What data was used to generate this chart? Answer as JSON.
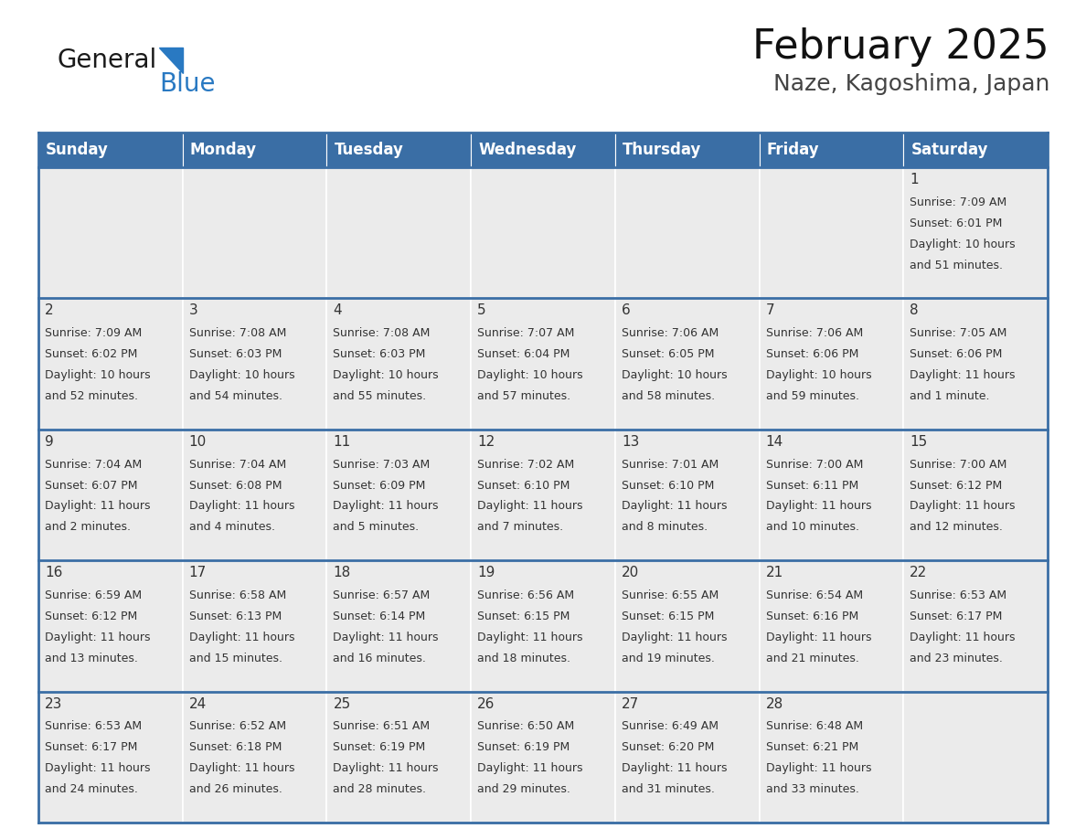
{
  "title": "February 2025",
  "subtitle": "Naze, Kagoshima, Japan",
  "header_bg_color": "#3A6EA5",
  "header_text_color": "#FFFFFF",
  "day_headers": [
    "Sunday",
    "Monday",
    "Tuesday",
    "Wednesday",
    "Thursday",
    "Friday",
    "Saturday"
  ],
  "header_font_size": 12,
  "day_num_font_size": 11,
  "info_font_size": 9,
  "cell_bg_color": "#EBEBEB",
  "cell_content_bg": "#FFFFFF",
  "border_color": "#3A6EA5",
  "sep_color": "#FFFFFF",
  "text_color": "#333333",
  "title_fontsize": 32,
  "subtitle_fontsize": 18,
  "days": [
    {
      "day": 1,
      "col": 6,
      "row": 0,
      "sunrise": "7:09 AM",
      "sunset": "6:01 PM",
      "daylight": "10 hours",
      "daylight2": "and 51 minutes."
    },
    {
      "day": 2,
      "col": 0,
      "row": 1,
      "sunrise": "7:09 AM",
      "sunset": "6:02 PM",
      "daylight": "10 hours",
      "daylight2": "and 52 minutes."
    },
    {
      "day": 3,
      "col": 1,
      "row": 1,
      "sunrise": "7:08 AM",
      "sunset": "6:03 PM",
      "daylight": "10 hours",
      "daylight2": "and 54 minutes."
    },
    {
      "day": 4,
      "col": 2,
      "row": 1,
      "sunrise": "7:08 AM",
      "sunset": "6:03 PM",
      "daylight": "10 hours",
      "daylight2": "and 55 minutes."
    },
    {
      "day": 5,
      "col": 3,
      "row": 1,
      "sunrise": "7:07 AM",
      "sunset": "6:04 PM",
      "daylight": "10 hours",
      "daylight2": "and 57 minutes."
    },
    {
      "day": 6,
      "col": 4,
      "row": 1,
      "sunrise": "7:06 AM",
      "sunset": "6:05 PM",
      "daylight": "10 hours",
      "daylight2": "and 58 minutes."
    },
    {
      "day": 7,
      "col": 5,
      "row": 1,
      "sunrise": "7:06 AM",
      "sunset": "6:06 PM",
      "daylight": "10 hours",
      "daylight2": "and 59 minutes."
    },
    {
      "day": 8,
      "col": 6,
      "row": 1,
      "sunrise": "7:05 AM",
      "sunset": "6:06 PM",
      "daylight": "11 hours",
      "daylight2": "and 1 minute."
    },
    {
      "day": 9,
      "col": 0,
      "row": 2,
      "sunrise": "7:04 AM",
      "sunset": "6:07 PM",
      "daylight": "11 hours",
      "daylight2": "and 2 minutes."
    },
    {
      "day": 10,
      "col": 1,
      "row": 2,
      "sunrise": "7:04 AM",
      "sunset": "6:08 PM",
      "daylight": "11 hours",
      "daylight2": "and 4 minutes."
    },
    {
      "day": 11,
      "col": 2,
      "row": 2,
      "sunrise": "7:03 AM",
      "sunset": "6:09 PM",
      "daylight": "11 hours",
      "daylight2": "and 5 minutes."
    },
    {
      "day": 12,
      "col": 3,
      "row": 2,
      "sunrise": "7:02 AM",
      "sunset": "6:10 PM",
      "daylight": "11 hours",
      "daylight2": "and 7 minutes."
    },
    {
      "day": 13,
      "col": 4,
      "row": 2,
      "sunrise": "7:01 AM",
      "sunset": "6:10 PM",
      "daylight": "11 hours",
      "daylight2": "and 8 minutes."
    },
    {
      "day": 14,
      "col": 5,
      "row": 2,
      "sunrise": "7:00 AM",
      "sunset": "6:11 PM",
      "daylight": "11 hours",
      "daylight2": "and 10 minutes."
    },
    {
      "day": 15,
      "col": 6,
      "row": 2,
      "sunrise": "7:00 AM",
      "sunset": "6:12 PM",
      "daylight": "11 hours",
      "daylight2": "and 12 minutes."
    },
    {
      "day": 16,
      "col": 0,
      "row": 3,
      "sunrise": "6:59 AM",
      "sunset": "6:12 PM",
      "daylight": "11 hours",
      "daylight2": "and 13 minutes."
    },
    {
      "day": 17,
      "col": 1,
      "row": 3,
      "sunrise": "6:58 AM",
      "sunset": "6:13 PM",
      "daylight": "11 hours",
      "daylight2": "and 15 minutes."
    },
    {
      "day": 18,
      "col": 2,
      "row": 3,
      "sunrise": "6:57 AM",
      "sunset": "6:14 PM",
      "daylight": "11 hours",
      "daylight2": "and 16 minutes."
    },
    {
      "day": 19,
      "col": 3,
      "row": 3,
      "sunrise": "6:56 AM",
      "sunset": "6:15 PM",
      "daylight": "11 hours",
      "daylight2": "and 18 minutes."
    },
    {
      "day": 20,
      "col": 4,
      "row": 3,
      "sunrise": "6:55 AM",
      "sunset": "6:15 PM",
      "daylight": "11 hours",
      "daylight2": "and 19 minutes."
    },
    {
      "day": 21,
      "col": 5,
      "row": 3,
      "sunrise": "6:54 AM",
      "sunset": "6:16 PM",
      "daylight": "11 hours",
      "daylight2": "and 21 minutes."
    },
    {
      "day": 22,
      "col": 6,
      "row": 3,
      "sunrise": "6:53 AM",
      "sunset": "6:17 PM",
      "daylight": "11 hours",
      "daylight2": "and 23 minutes."
    },
    {
      "day": 23,
      "col": 0,
      "row": 4,
      "sunrise": "6:53 AM",
      "sunset": "6:17 PM",
      "daylight": "11 hours",
      "daylight2": "and 24 minutes."
    },
    {
      "day": 24,
      "col": 1,
      "row": 4,
      "sunrise": "6:52 AM",
      "sunset": "6:18 PM",
      "daylight": "11 hours",
      "daylight2": "and 26 minutes."
    },
    {
      "day": 25,
      "col": 2,
      "row": 4,
      "sunrise": "6:51 AM",
      "sunset": "6:19 PM",
      "daylight": "11 hours",
      "daylight2": "and 28 minutes."
    },
    {
      "day": 26,
      "col": 3,
      "row": 4,
      "sunrise": "6:50 AM",
      "sunset": "6:19 PM",
      "daylight": "11 hours",
      "daylight2": "and 29 minutes."
    },
    {
      "day": 27,
      "col": 4,
      "row": 4,
      "sunrise": "6:49 AM",
      "sunset": "6:20 PM",
      "daylight": "11 hours",
      "daylight2": "and 31 minutes."
    },
    {
      "day": 28,
      "col": 5,
      "row": 4,
      "sunrise": "6:48 AM",
      "sunset": "6:21 PM",
      "daylight": "11 hours",
      "daylight2": "and 33 minutes."
    }
  ],
  "num_rows": 5,
  "num_cols": 7
}
